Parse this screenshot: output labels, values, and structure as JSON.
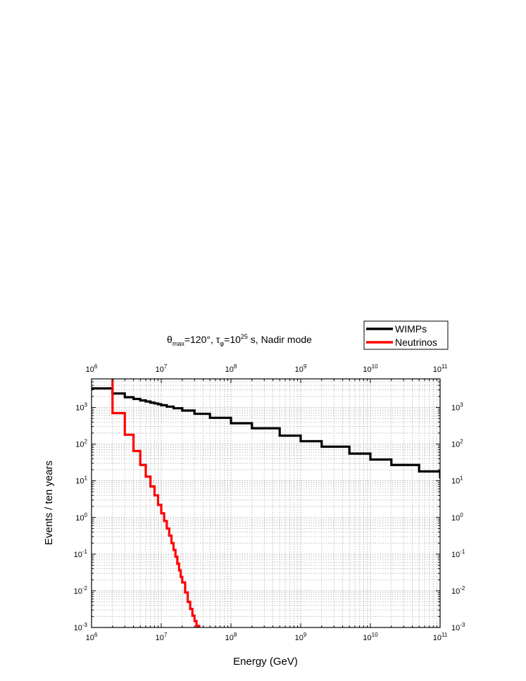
{
  "chart_data": {
    "type": "line",
    "title": {
      "parts": [
        {
          "t": "θ"
        },
        {
          "t": "max",
          "sub": true
        },
        {
          "t": "=120°,  τ"
        },
        {
          "t": "φ",
          "sub": true
        },
        {
          "t": "=10"
        },
        {
          "t": "25",
          "sup": true
        },
        {
          "t": " s,  Nadir mode"
        }
      ]
    },
    "xlabel": "Energy (GeV)",
    "ylabel": "Events / ten years",
    "xscale": "log",
    "yscale": "log",
    "xlim": [
      1000000,
      100000000000
    ],
    "ylim": [
      0.001,
      6000
    ],
    "x_tick_exponents": [
      6,
      7,
      8,
      9,
      10,
      11
    ],
    "y_tick_exponents": [
      -3,
      -2,
      -1,
      0,
      1,
      2,
      3
    ],
    "grid": true,
    "legend_position": "top-right (outside plot, above)",
    "series": [
      {
        "name": "WIMPs",
        "color": "#000000",
        "style": "step",
        "x": [
          1000000,
          2000000,
          3000000,
          4000000,
          5000000,
          6000000,
          7000000,
          8000000,
          9000000,
          10000000,
          12000000,
          15000000,
          20000000,
          30000000,
          50000000,
          100000000,
          200000000,
          500000000,
          1000000000,
          2000000000,
          5000000000,
          10000000000,
          20000000000,
          50000000000,
          100000000000
        ],
        "y": [
          3300,
          2400,
          1900,
          1700,
          1550,
          1450,
          1350,
          1280,
          1220,
          1150,
          1050,
          950,
          820,
          670,
          520,
          370,
          270,
          170,
          120,
          85,
          55,
          38,
          27,
          18,
          12.5
        ]
      },
      {
        "name": "Neutrinos",
        "color": "#ff0000",
        "style": "step",
        "x": [
          1000000,
          2000000,
          3000000,
          4000000,
          5000000,
          6000000,
          7000000,
          8000000,
          9000000,
          10000000,
          11000000,
          12000000,
          13000000,
          14000000,
          15000000,
          16000000,
          17000000,
          18000000,
          19000000,
          20000000,
          22000000,
          24000000,
          26000000,
          28000000,
          30000000,
          32000000,
          35000000,
          38000000
        ],
        "y": [
          6500,
          700,
          180,
          65,
          27,
          13,
          7,
          4,
          2.2,
          1.3,
          0.8,
          0.5,
          0.32,
          0.2,
          0.13,
          0.085,
          0.055,
          0.036,
          0.024,
          0.017,
          0.009,
          0.005,
          0.0032,
          0.0021,
          0.0015,
          0.0011,
          0.00075,
          0.0005
        ]
      }
    ]
  }
}
